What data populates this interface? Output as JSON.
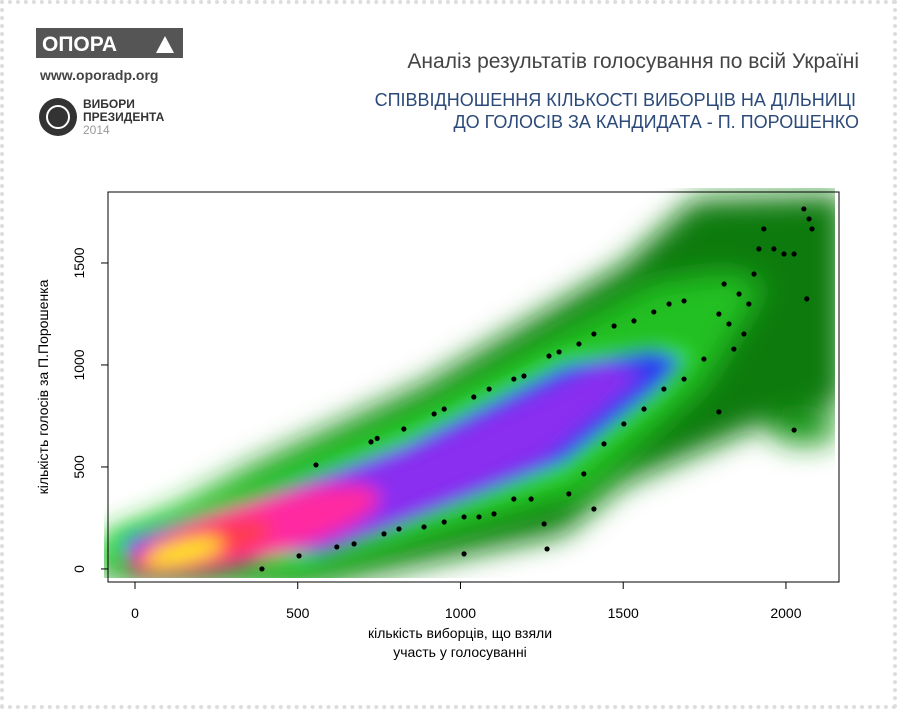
{
  "header": {
    "logo": "ОПОРА",
    "website": "www.oporadp.org",
    "badge": [
      "ВИБОРИ",
      "ПРЕЗИДЕНТА",
      "2014"
    ]
  },
  "chart_data": {
    "type": "scatter",
    "title": "Аналіз результатів голосування по всій Україні",
    "subtitle": [
      "СПІВВІДНОШЕННЯ КІЛЬКОСТІ ВИБОРЦІВ НА ДІЛЬНИЦІ",
      "ДО ГОЛОСІВ ЗА КАНДИДАТА - П. ПОРОШЕНКО"
    ],
    "xlabel": [
      "кількість виборців, що взяли",
      "участь у голосуванні"
    ],
    "ylabel": "кількість голосів за П.Порошенка",
    "xlim": [
      -83,
      2163
    ],
    "ylim": [
      -64,
      1848
    ],
    "xticks": [
      0,
      500,
      1000,
      1500,
      2000
    ],
    "yticks": [
      0,
      500,
      1000,
      1500
    ],
    "color": "#000000",
    "x": [
      556,
      725,
      744,
      826,
      919,
      950,
      1041,
      1088,
      1164,
      1195,
      1272,
      1303,
      1364,
      1410,
      1472,
      1533,
      1594,
      1641,
      1687,
      1810,
      1856,
      1886,
      1825,
      1871,
      1840,
      1794,
      1902,
      1917,
      1963,
      1994,
      2025,
      2055,
      2071,
      2080,
      2064,
      2025,
      1932,
      390,
      504,
      620,
      673,
      765,
      811,
      888,
      950,
      1011,
      1057,
      1103,
      1164,
      1217,
      1257,
      1266,
      1333,
      1379,
      1410,
      1441,
      1502,
      1564,
      1625,
      1687,
      1748,
      1794,
      1011
    ],
    "y": [
      510,
      623,
      640,
      686,
      760,
      784,
      843,
      882,
      931,
      946,
      1044,
      1064,
      1103,
      1152,
      1191,
      1216,
      1260,
      1299,
      1314,
      1397,
      1348,
      1299,
      1201,
      1152,
      1078,
      1250,
      1446,
      1569,
      1569,
      1544,
      1544,
      1765,
      1716,
      1667,
      1324,
      681,
      1667,
      0,
      64,
      108,
      123,
      172,
      196,
      206,
      230,
      255,
      255,
      270,
      343,
      343,
      221,
      98,
      368,
      466,
      294,
      613,
      711,
      784,
      882,
      931,
      1029,
      770,
      74
    ]
  }
}
